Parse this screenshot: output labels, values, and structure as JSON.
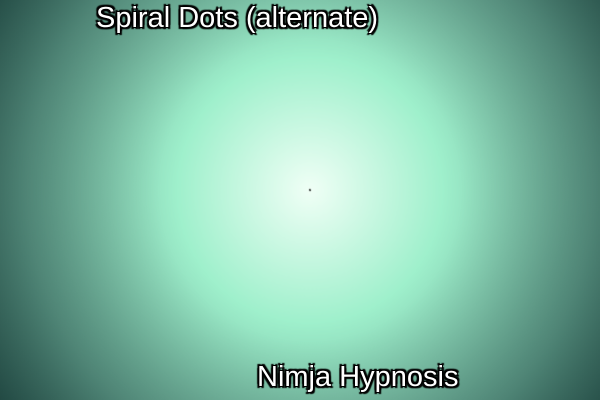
{
  "title": "Spiral Dots (alternate)",
  "watermark": "Nimja Hypnosis",
  "colors": {
    "center": "#f0fff6",
    "mid": "#9ff0cc",
    "outer": "#5f9e8c",
    "edge": "#2e5e56",
    "ink": "#000000"
  },
  "spiral": {
    "arms": 2,
    "direction": "counterclockwise",
    "pattern": "alternating dots and gaps"
  }
}
